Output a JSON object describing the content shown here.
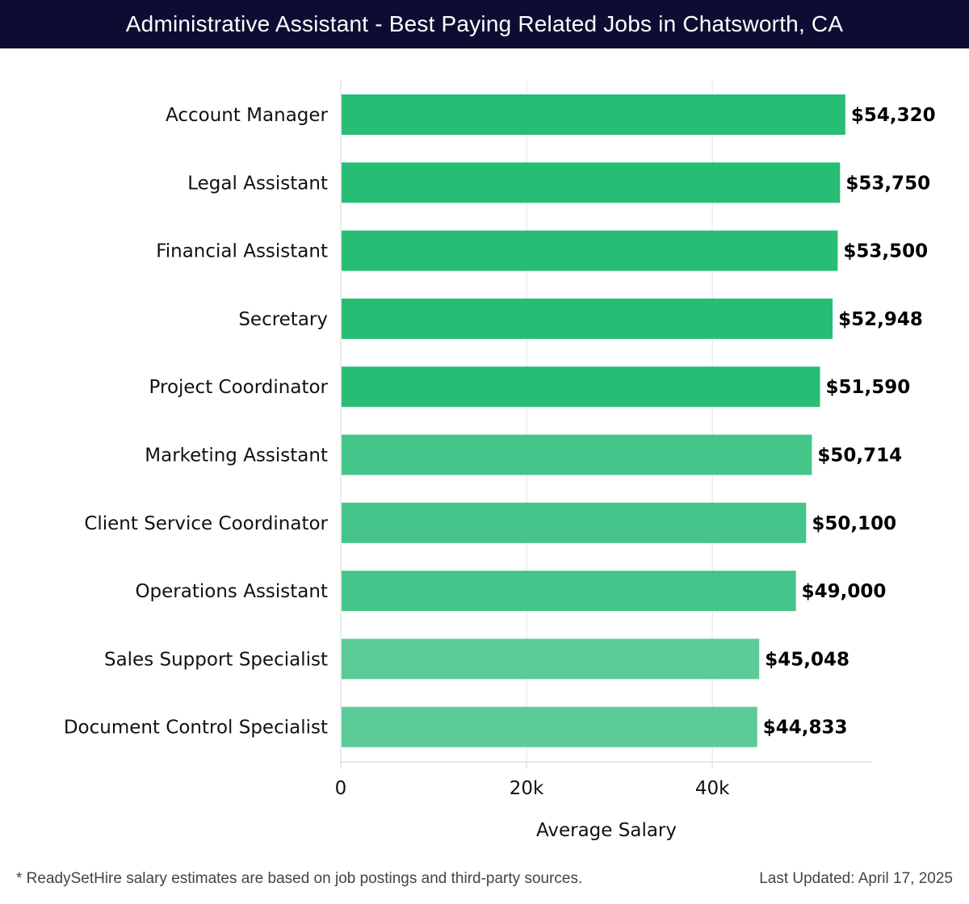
{
  "header": {
    "title": "Administrative Assistant - Best Paying Related Jobs in Chatsworth, CA"
  },
  "colors": {
    "header_bg": "#0d0d33",
    "bar_dark": "#27bd74",
    "bar_mid": "#45c589",
    "bar_light": "#5bcc98",
    "grid": "#e4e4e4"
  },
  "chart_data": {
    "type": "bar",
    "orientation": "horizontal",
    "title": "Administrative Assistant - Best Paying Related Jobs in Chatsworth, CA",
    "xlabel": "Average Salary",
    "ylabel": "",
    "xlim": [
      0,
      57200
    ],
    "grid": true,
    "xticks": [
      {
        "value": 0,
        "label": "0"
      },
      {
        "value": 20000,
        "label": "20k"
      },
      {
        "value": 40000,
        "label": "40k"
      }
    ],
    "categories": [
      "Account Manager",
      "Legal Assistant",
      "Financial Assistant",
      "Secretary",
      "Project Coordinator",
      "Marketing Assistant",
      "Client Service Coordinator",
      "Operations Assistant",
      "Sales Support Specialist",
      "Document Control Specialist"
    ],
    "values": [
      54320,
      53750,
      53500,
      52948,
      51590,
      50714,
      50100,
      49000,
      45048,
      44833
    ],
    "value_labels": [
      "$54,320",
      "$53,750",
      "$53,500",
      "$52,948",
      "$51,590",
      "$50,714",
      "$50,100",
      "$49,000",
      "$45,048",
      "$44,833"
    ]
  },
  "footer": {
    "note": "* ReadySetHire salary estimates are based on job postings and third-party sources.",
    "updated": "Last Updated: April 17, 2025"
  }
}
